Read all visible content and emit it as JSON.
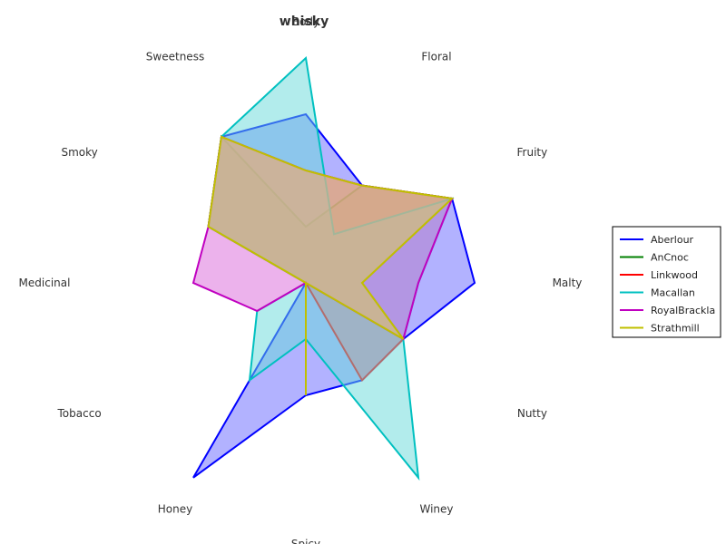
{
  "chart_data": {
    "type": "radar",
    "title": "whisky",
    "axes": [
      "Body",
      "Floral",
      "Fruity",
      "Malty",
      "Nutty",
      "Winey",
      "Spicy",
      "Honey",
      "Tobacco",
      "Medicinal",
      "Smoky",
      "Sweetness"
    ],
    "range": [
      0,
      4
    ],
    "legend_position": "right",
    "series": [
      {
        "name": "Aberlour",
        "color": "#0000ff",
        "fill": "#6666ff",
        "values": [
          3,
          2,
          3,
          3,
          2,
          2,
          2,
          4,
          0,
          0,
          2,
          3
        ]
      },
      {
        "name": "AnCnoc",
        "color": "#008000",
        "fill": "#66b366",
        "values": [
          1,
          2,
          3,
          1,
          2,
          0,
          0,
          0,
          0,
          0,
          2,
          3
        ]
      },
      {
        "name": "Linkwood",
        "color": "#ff0000",
        "fill": "#ff6666",
        "values": [
          2,
          2,
          3,
          1,
          2,
          2,
          0,
          0,
          0,
          0,
          2,
          3
        ]
      },
      {
        "name": "Macallan",
        "color": "#00c0c0",
        "fill": "#66d9d9",
        "values": [
          4,
          1,
          3,
          2,
          2,
          4,
          1,
          2,
          1,
          0,
          2,
          3
        ]
      },
      {
        "name": "RoyalBrackla",
        "color": "#c000c0",
        "fill": "#d966d9",
        "values": [
          2,
          2,
          3,
          2,
          2,
          0,
          2,
          0,
          1,
          2,
          2,
          3
        ]
      },
      {
        "name": "Strathmill",
        "color": "#c0c000",
        "fill": "#d9d966",
        "values": [
          2,
          2,
          3,
          1,
          2,
          0,
          2,
          0,
          0,
          0,
          2,
          3
        ]
      }
    ]
  }
}
